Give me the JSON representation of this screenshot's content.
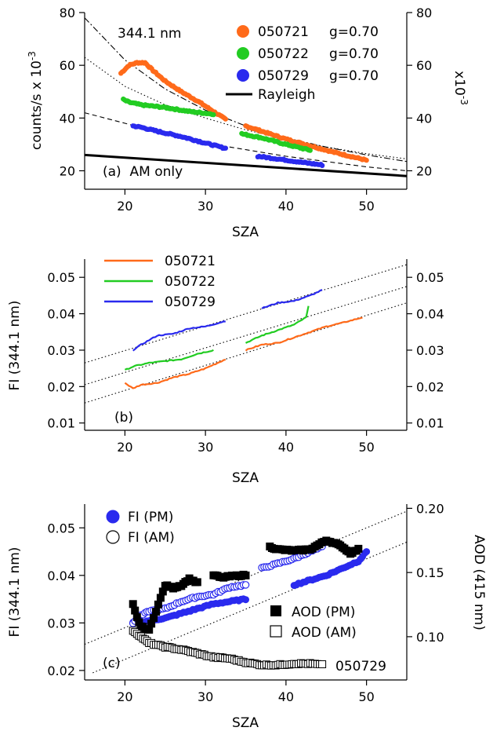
{
  "chart_data": [
    {
      "id": "a",
      "type": "scatter",
      "panel_label": "(a)  AM only",
      "annotation": "344.1 nm",
      "xlabel": "SZA",
      "ylabel": "counts/s x 10",
      "ylabel_exp": "-3",
      "y2label": "x10",
      "y2label_exp": "-3",
      "xlim": [
        15,
        55
      ],
      "ylim": [
        13,
        80
      ],
      "xticks": [
        20,
        30,
        40,
        50
      ],
      "yticks": [
        20,
        40,
        60,
        80
      ],
      "y2ticks": [
        20,
        40,
        60,
        80
      ],
      "legend_position": "top-right",
      "series": [
        {
          "name": "050721",
          "note": "g=0.70",
          "color": "#ff6a1a",
          "marker": "dot",
          "segments": [
            [
              [
                19.5,
                57
              ],
              [
                20.5,
                60
              ],
              [
                21.5,
                61
              ],
              [
                22.5,
                61
              ],
              [
                23.5,
                58
              ],
              [
                25,
                54
              ],
              [
                27,
                50
              ],
              [
                29,
                46.5
              ],
              [
                31,
                42.5
              ],
              [
                32.5,
                39.5
              ]
            ],
            [
              [
                35,
                37
              ],
              [
                37,
                35
              ],
              [
                40,
                32
              ],
              [
                43,
                29.5
              ],
              [
                46,
                27
              ],
              [
                50,
                24
              ]
            ]
          ]
        },
        {
          "name": "050722",
          "note": "g=0.70",
          "color": "#22cc22",
          "marker": "dot",
          "segments": [
            [
              [
                19.8,
                47
              ],
              [
                20.5,
                46
              ],
              [
                22,
                45
              ],
              [
                25,
                44
              ],
              [
                28,
                42.5
              ],
              [
                31,
                41.5
              ]
            ],
            [
              [
                34.5,
                34
              ],
              [
                37,
                32.5
              ],
              [
                40,
                30
              ],
              [
                43,
                27.8
              ]
            ]
          ]
        },
        {
          "name": "050729",
          "note": "g=0.70",
          "color": "#2a2aee",
          "marker": "dot",
          "segments": [
            [
              [
                21,
                37
              ],
              [
                22,
                36.5
              ],
              [
                24,
                35
              ],
              [
                27,
                33
              ],
              [
                30,
                30.5
              ],
              [
                32.5,
                28.5
              ]
            ],
            [
              [
                36.5,
                25.5
              ],
              [
                39,
                24.5
              ],
              [
                42,
                23.2
              ],
              [
                44.5,
                22.2
              ]
            ]
          ]
        },
        {
          "name": "Rayleigh",
          "color": "#000000",
          "marker": "line",
          "segments": [
            [
              [
                15,
                26
              ],
              [
                55,
                18
              ]
            ]
          ]
        }
      ],
      "fit_curves": [
        {
          "style": "dashdot",
          "points": [
            [
              15,
              78
            ],
            [
              20,
              62
            ],
            [
              25,
              51
            ],
            [
              30,
              43
            ],
            [
              35,
              37
            ],
            [
              40,
              32.5
            ],
            [
              45,
              29
            ],
            [
              50,
              26
            ],
            [
              55,
              23.5
            ]
          ]
        },
        {
          "style": "dotted",
          "points": [
            [
              15,
              63
            ],
            [
              20,
              52
            ],
            [
              25,
              45
            ],
            [
              30,
              40
            ],
            [
              35,
              35.5
            ],
            [
              40,
              32
            ],
            [
              45,
              29
            ],
            [
              50,
              26.5
            ],
            [
              55,
              24.5
            ]
          ]
        },
        {
          "style": "dashed",
          "points": [
            [
              15,
              42
            ],
            [
              20,
              38
            ],
            [
              25,
              34
            ],
            [
              30,
              30.5
            ],
            [
              35,
              28
            ],
            [
              40,
              25.5
            ],
            [
              45,
              23.5
            ],
            [
              50,
              21.5
            ],
            [
              55,
              20
            ]
          ]
        }
      ]
    },
    {
      "id": "b",
      "type": "line",
      "panel_label": "(b)",
      "xlabel": "SZA",
      "ylabel": "FI (344.1 nm)",
      "xlim": [
        15,
        55
      ],
      "ylim": [
        0.008,
        0.055
      ],
      "xticks": [
        20,
        30,
        40,
        50
      ],
      "yticks": [
        0.01,
        0.02,
        0.03,
        0.04,
        0.05
      ],
      "y2ticks": [
        0.01,
        0.02,
        0.03,
        0.04,
        0.05
      ],
      "legend_position": "top-left",
      "series": [
        {
          "name": "050721",
          "color": "#ff6a1a",
          "segments": [
            [
              [
                20,
                0.021
              ],
              [
                21,
                0.0195
              ],
              [
                22,
                0.0205
              ],
              [
                24,
                0.021
              ],
              [
                26,
                0.0225
              ],
              [
                28,
                0.0235
              ],
              [
                30,
                0.025
              ],
              [
                32.5,
                0.0275
              ]
            ],
            [
              [
                35,
                0.03
              ],
              [
                37,
                0.0315
              ],
              [
                39,
                0.032
              ],
              [
                41,
                0.0335
              ],
              [
                43,
                0.035
              ],
              [
                45,
                0.0365
              ],
              [
                47,
                0.0375
              ],
              [
                49.5,
                0.039
              ]
            ]
          ]
        },
        {
          "name": "050722",
          "color": "#22cc22",
          "segments": [
            [
              [
                20,
                0.0245
              ],
              [
                21,
                0.0255
              ],
              [
                23,
                0.0265
              ],
              [
                25,
                0.027
              ],
              [
                27,
                0.0275
              ],
              [
                29,
                0.029
              ],
              [
                31,
                0.03
              ]
            ],
            [
              [
                35,
                0.032
              ],
              [
                37,
                0.034
              ],
              [
                39,
                0.0355
              ],
              [
                41,
                0.037
              ],
              [
                42.5,
                0.039
              ],
              [
                42.8,
                0.042
              ]
            ]
          ]
        },
        {
          "name": "050729",
          "color": "#2a2aee",
          "segments": [
            [
              [
                21,
                0.03
              ],
              [
                22,
                0.0315
              ],
              [
                24,
                0.034
              ],
              [
                26,
                0.0345
              ],
              [
                28,
                0.036
              ],
              [
                30,
                0.0365
              ],
              [
                32.5,
                0.038
              ]
            ],
            [
              [
                37,
                0.0415
              ],
              [
                39,
                0.043
              ],
              [
                41,
                0.0435
              ],
              [
                43,
                0.045
              ],
              [
                44.5,
                0.0465
              ]
            ]
          ]
        }
      ],
      "fit_lines": [
        {
          "style": "dotted",
          "points": [
            [
              15,
              0.0155
            ],
            [
              55,
              0.043
            ]
          ]
        },
        {
          "style": "dotted",
          "points": [
            [
              15,
              0.0205
            ],
            [
              55,
              0.0475
            ]
          ]
        },
        {
          "style": "dotted",
          "points": [
            [
              15,
              0.0265
            ],
            [
              55,
              0.0535
            ]
          ]
        }
      ]
    },
    {
      "id": "c",
      "type": "scatter",
      "panel_label": "(c)",
      "annotation": "050729",
      "xlabel": "SZA",
      "ylabel": "FI (344.1 nm)",
      "y2label": "AOD (415 nm)",
      "xlim": [
        15,
        55
      ],
      "ylim": [
        0.018,
        0.055
      ],
      "y2lim": [
        0.0663,
        0.2033
      ],
      "xticks": [
        20,
        30,
        40,
        50
      ],
      "yticks": [
        0.02,
        0.03,
        0.04,
        0.05
      ],
      "y2ticks": [
        0.1,
        0.15,
        0.2
      ],
      "y2tick_labels": [
        "0.10",
        "0.15",
        "0.20"
      ],
      "series": [
        {
          "name": "FI (PM)",
          "axis": "left",
          "color": "#2a2aee",
          "marker": "filled-circle",
          "segments": [
            [
              [
                21,
                0.03
              ],
              [
                22,
                0.03
              ],
              [
                23,
                0.0305
              ],
              [
                25,
                0.031
              ],
              [
                27,
                0.032
              ],
              [
                29,
                0.033
              ],
              [
                31,
                0.034
              ],
              [
                33,
                0.0345
              ],
              [
                35,
                0.035
              ]
            ],
            [
              [
                41,
                0.038
              ],
              [
                43,
                0.039
              ],
              [
                45,
                0.04
              ],
              [
                47,
                0.0415
              ],
              [
                49,
                0.043
              ],
              [
                50,
                0.045
              ]
            ]
          ]
        },
        {
          "name": "FI (AM)",
          "axis": "left",
          "color": "#2a2aee",
          "marker": "open-circle",
          "segments": [
            [
              [
                21,
                0.03
              ],
              [
                22,
                0.0315
              ],
              [
                23,
                0.0325
              ],
              [
                25,
                0.033
              ],
              [
                27,
                0.0345
              ],
              [
                29,
                0.0355
              ],
              [
                31,
                0.036
              ],
              [
                33,
                0.0375
              ],
              [
                35,
                0.038
              ]
            ],
            [
              [
                37,
                0.0415
              ],
              [
                39,
                0.0425
              ],
              [
                41,
                0.0435
              ],
              [
                43,
                0.045
              ],
              [
                44.5,
                0.046
              ]
            ]
          ]
        },
        {
          "name": "AOD (PM)",
          "axis": "right",
          "color": "#000000",
          "marker": "filled-square",
          "segments": [
            [
              [
                21,
                0.125
              ],
              [
                21.5,
                0.115
              ],
              [
                22,
                0.108
              ],
              [
                23,
                0.105
              ],
              [
                25,
                0.14
              ],
              [
                26,
                0.138
              ],
              [
                27,
                0.14
              ],
              [
                28,
                0.145
              ],
              [
                29,
                0.142
              ]
            ],
            [
              [
                31,
                0.148
              ],
              [
                32,
                0.146
              ],
              [
                33,
                0.147
              ],
              [
                35,
                0.148
              ]
            ],
            [
              [
                38,
                0.17
              ],
              [
                39,
                0.168
              ],
              [
                41,
                0.167
              ],
              [
                43,
                0.168
              ],
              [
                45,
                0.175
              ],
              [
                46,
                0.173
              ],
              [
                47,
                0.17
              ],
              [
                48,
                0.165
              ],
              [
                49,
                0.168
              ]
            ]
          ]
        },
        {
          "name": "AOD (AM)",
          "axis": "right",
          "color": "#000000",
          "marker": "open-square",
          "segments": [
            [
              [
                21,
                0.105
              ],
              [
                22,
                0.1
              ],
              [
                23,
                0.095
              ],
              [
                25,
                0.092
              ],
              [
                27,
                0.09
              ],
              [
                29,
                0.087
              ],
              [
                31,
                0.084
              ],
              [
                33,
                0.083
              ],
              [
                35,
                0.08
              ],
              [
                37,
                0.078
              ],
              [
                39,
                0.078
              ],
              [
                41,
                0.079
              ],
              [
                43,
                0.079
              ],
              [
                44.5,
                0.078
              ]
            ]
          ]
        }
      ],
      "fit_lines": [
        {
          "style": "dotted",
          "points": [
            [
              16,
              0.0195
            ],
            [
              55,
              0.047
            ]
          ]
        },
        {
          "style": "dotted",
          "points": [
            [
              15,
              0.0255
            ],
            [
              55,
              0.0535
            ]
          ]
        }
      ]
    }
  ]
}
